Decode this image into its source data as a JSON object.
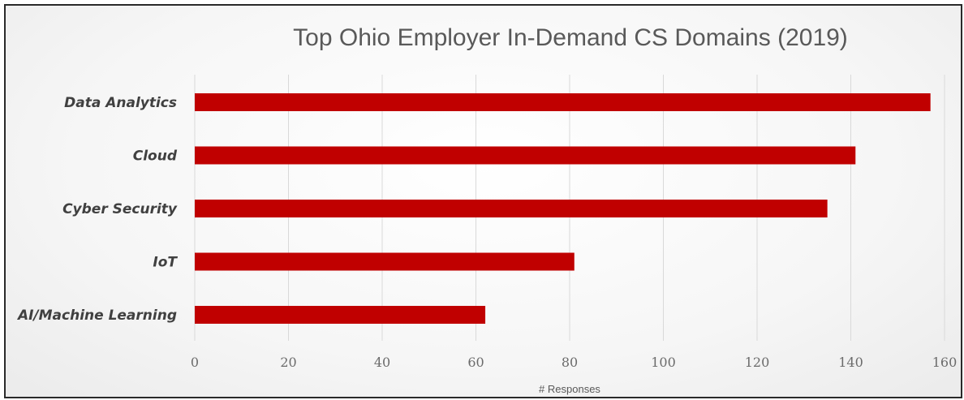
{
  "chart_data": {
    "type": "bar",
    "orientation": "horizontal",
    "title": "Top Ohio Employer In-Demand CS Domains (2019)",
    "xlabel": "# Responses",
    "ylabel": "",
    "categories": [
      "Data Analytics",
      "Cloud",
      "Cyber Security",
      "IoT",
      "AI/Machine Learning"
    ],
    "values": [
      157,
      141,
      135,
      81,
      62
    ],
    "xlim": [
      0,
      160
    ],
    "xticks": [
      "0",
      "20",
      "40",
      "60",
      "80",
      "100",
      "120",
      "140",
      "160"
    ],
    "grid": true,
    "legend": "none",
    "bar_color": "#c00000"
  }
}
